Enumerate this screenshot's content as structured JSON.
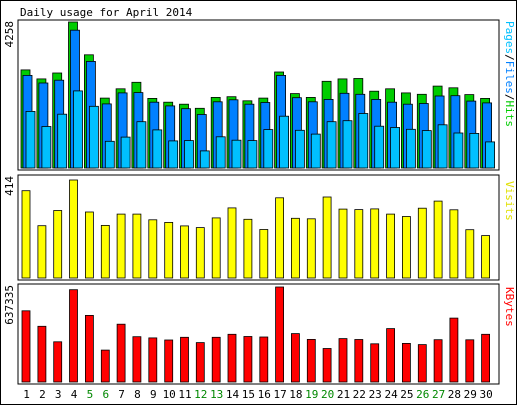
{
  "chart_data": {
    "type": "bar",
    "title": "Daily usage for April 2014",
    "categories": [
      "1",
      "2",
      "3",
      "4",
      "5",
      "6",
      "7",
      "8",
      "9",
      "10",
      "11",
      "12",
      "13",
      "14",
      "15",
      "16",
      "17",
      "18",
      "19",
      "20",
      "21",
      "22",
      "23",
      "24",
      "25",
      "26",
      "27",
      "28",
      "29",
      "30"
    ],
    "weekend_days": [
      "5",
      "6",
      "12",
      "13",
      "19",
      "20",
      "26",
      "27"
    ],
    "colors": {
      "hits": "#00cc00",
      "files": "#0080ff",
      "pages": "#00c0ff",
      "visits": "#ffff00",
      "kbytes": "#ff0000",
      "weekday_label": "#000000",
      "weekend_label": "#008800"
    },
    "panels": [
      {
        "ylabel_parts": [
          {
            "text": "Pages",
            "color": "#00c0ff"
          },
          {
            "text": "/",
            "color": "#000000"
          },
          {
            "text": "Files",
            "color": "#0080ff"
          },
          {
            "text": "/",
            "color": "#000000"
          },
          {
            "text": "Hits",
            "color": "#00cc00"
          }
        ],
        "max_label": "4258",
        "ymax": 4258,
        "series": [
          {
            "name": "Hits",
            "values": [
              2860,
              2600,
              2770,
              4258,
              3300,
              2040,
              2310,
              2500,
              2030,
              1920,
              1860,
              1740,
              2060,
              2080,
              1960,
              2040,
              2800,
              2170,
              2060,
              2530,
              2600,
              2610,
              2240,
              2310,
              2190,
              2150,
              2390,
              2340,
              2140,
              2030
            ]
          },
          {
            "name": "Files",
            "values": [
              2700,
              2480,
              2560,
              4020,
              3110,
              1870,
              2190,
              2200,
              1920,
              1810,
              1730,
              1560,
              1930,
              1990,
              1860,
              1910,
              2700,
              2050,
              1930,
              2000,
              2180,
              2150,
              2000,
              1920,
              1860,
              1880,
              2100,
              2110,
              1950,
              1900
            ]
          },
          {
            "name": "Pages",
            "values": [
              1650,
              1210,
              1570,
              2250,
              1800,
              780,
              900,
              1350,
              1110,
              790,
              800,
              500,
              910,
              810,
              800,
              1120,
              1510,
              1100,
              990,
              1350,
              1380,
              1590,
              1220,
              1180,
              1130,
              1090,
              1260,
              1020,
              1010,
              760
            ]
          }
        ]
      },
      {
        "ylabel_parts": [
          {
            "text": "Visits",
            "color": "#e0e000"
          }
        ],
        "max_label": "414",
        "ymax": 414,
        "series": [
          {
            "name": "Visits",
            "values": [
              369,
              221,
              285,
              414,
              279,
              222,
              270,
              270,
              246,
              235,
              220,
              213,
              254,
              296,
              248,
              205,
              339,
              252,
              250,
              342,
              291,
              289,
              292,
              270,
              260,
              295,
              325,
              288,
              204,
              179
            ]
          }
        ]
      },
      {
        "ylabel_parts": [
          {
            "text": "KBytes",
            "color": "#ff0000"
          }
        ],
        "max_label": "637335",
        "ymax": 637335,
        "series": [
          {
            "name": "KBytes",
            "values": [
              478000,
              374000,
              270000,
              619000,
              447000,
              214000,
              388000,
              304000,
              296000,
              282000,
              300000,
              264000,
              300000,
              320000,
              305000,
              302000,
              637335,
              325000,
              286000,
              225000,
              291000,
              285000,
              256000,
              358000,
              259000,
              251000,
              284000,
              429000,
              283000,
              320000
            ]
          }
        ]
      }
    ]
  }
}
